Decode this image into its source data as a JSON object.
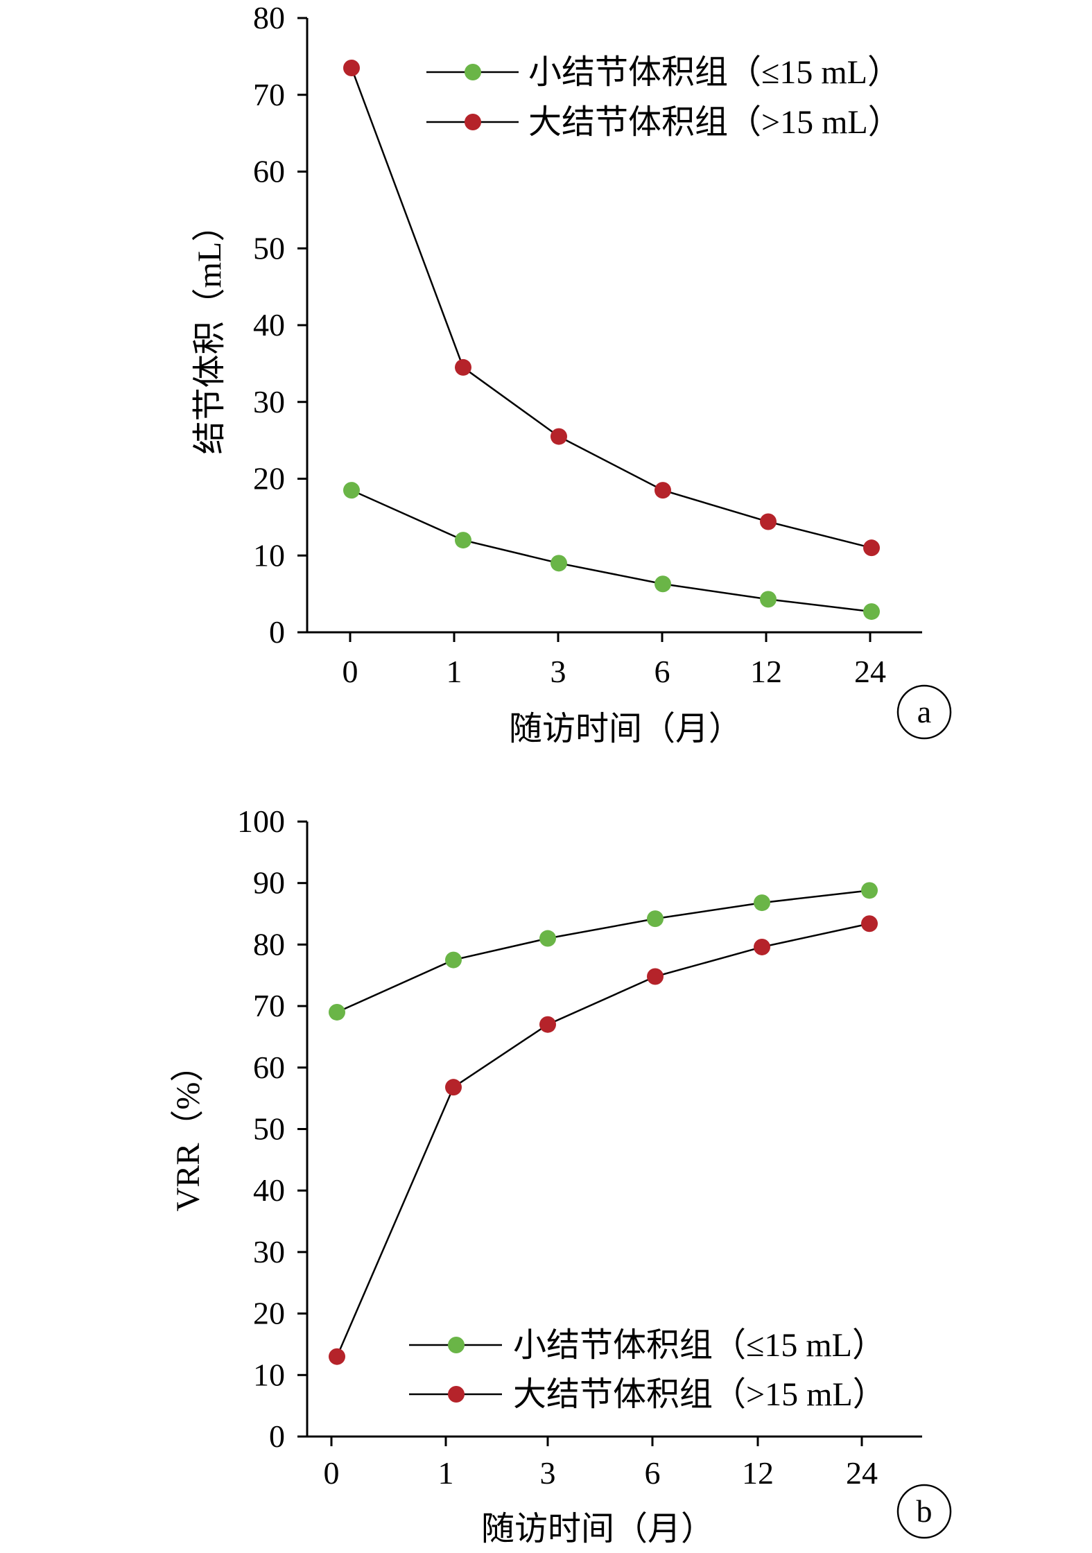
{
  "chart_data": [
    {
      "type": "line",
      "panel_label": "a",
      "categories": [
        "0",
        "1",
        "3",
        "6",
        "12",
        "24"
      ],
      "xlabel": "随访时间（月）",
      "ylabel": "结节体积（mL）",
      "ylim": [
        0,
        80
      ],
      "yticks": [
        0,
        10,
        20,
        30,
        40,
        50,
        60,
        70,
        80
      ],
      "grid": false,
      "legend_position": "top-right",
      "series": [
        {
          "name": "小结节体积组（≤15 mL）",
          "color": "#6ab547",
          "values": [
            18.5,
            12,
            9,
            6.3,
            4.3,
            2.7
          ]
        },
        {
          "name": "大结节体积组（>15 mL）",
          "color": "#b5232a",
          "values": [
            73.5,
            34.5,
            25.5,
            18.5,
            14.4,
            11
          ]
        }
      ]
    },
    {
      "type": "line",
      "panel_label": "b",
      "categories": [
        "0",
        "1",
        "3",
        "6",
        "12",
        "24"
      ],
      "xlabel": "随访时间（月）",
      "ylabel": "VRR（%）",
      "ylim": [
        0,
        100
      ],
      "yticks": [
        0,
        10,
        20,
        30,
        40,
        50,
        60,
        70,
        80,
        90,
        100
      ],
      "grid": false,
      "legend_position": "bottom-right",
      "series": [
        {
          "name": "小结节体积组（≤15 mL）",
          "color": "#6ab547",
          "values": [
            69,
            77.5,
            81,
            84.2,
            86.8,
            88.8
          ]
        },
        {
          "name": "大结节体积组（>15 mL）",
          "color": "#b5232a",
          "values": [
            13,
            56.8,
            67,
            74.8,
            79.6,
            83.4
          ]
        }
      ]
    }
  ]
}
